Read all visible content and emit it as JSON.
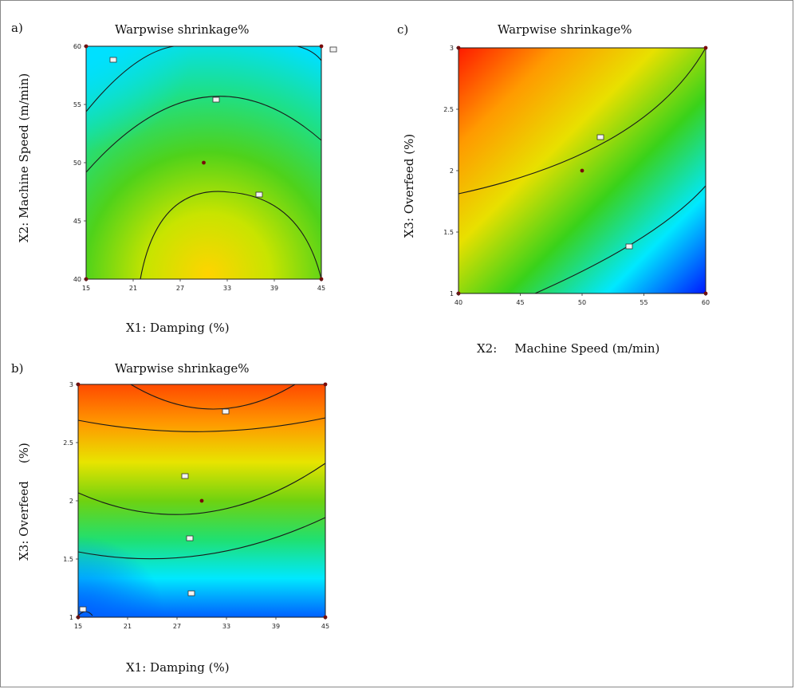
{
  "chart_data": [
    {
      "panel": "a)",
      "type": "heatmap",
      "title": "Warpwise shrinkage%",
      "xlabel": "X1: Damping (%)",
      "ylabel": "X2: Machine Speed (m/min)",
      "xlim": [
        15,
        45
      ],
      "ylim": [
        40,
        60
      ],
      "xticks": [
        "15",
        "21",
        "27",
        "33",
        "39",
        "45"
      ],
      "yticks": [
        "40",
        "45",
        "50",
        "55",
        "60"
      ],
      "colors": [
        "#00e0ff",
        "#1de08a",
        "#4fd21a",
        "#c8e400",
        "#ffd400"
      ],
      "center_point": [
        30,
        50
      ]
    },
    {
      "panel": "b)",
      "type": "heatmap",
      "title": "Warpwise shrinkage%",
      "xlabel": "X1: Damping (%)",
      "ylabel_parts": [
        "X3: Overfeed",
        "(%)"
      ],
      "xlim": [
        15,
        45
      ],
      "ylim": [
        1,
        3
      ],
      "xticks": [
        "15",
        "21",
        "27",
        "33",
        "39",
        "45"
      ],
      "yticks": [
        "1",
        "1.5",
        "2",
        "2.5",
        "3"
      ],
      "colors": [
        "#0060ff",
        "#00e8ff",
        "#20e070",
        "#6fd210",
        "#e8e400",
        "#ff9800",
        "#ff4a00"
      ],
      "center_point": [
        30,
        2
      ]
    },
    {
      "panel": "c)",
      "type": "heatmap",
      "title": "Warpwise shrinkage%",
      "xlabel_parts": [
        "X2:",
        "Machine Speed (m/min)"
      ],
      "ylabel": "X3: Overfeed (%)",
      "xlim": [
        40,
        60
      ],
      "ylim": [
        1,
        3
      ],
      "xticks": [
        "40",
        "45",
        "50",
        "55",
        "60"
      ],
      "yticks": [
        "1",
        "1.5",
        "2",
        "2.5",
        "3"
      ],
      "colors": [
        "#ff1a00",
        "#ff9a00",
        "#e8e000",
        "#39d21a",
        "#00e8ff",
        "#0018ff"
      ],
      "center_point": [
        50,
        2
      ]
    }
  ]
}
